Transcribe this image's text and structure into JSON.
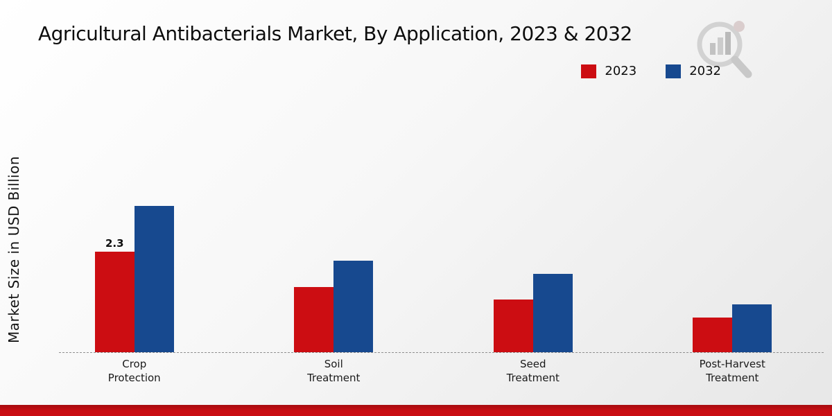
{
  "title": "Agricultural Antibacterials Market, By Application, 2023 & 2032",
  "y_axis_label": "Market Size in USD Billion",
  "legend": [
    {
      "label": "2023",
      "color": "#cc0d12"
    },
    {
      "label": "2032",
      "color": "#17498f"
    }
  ],
  "chart_data": {
    "type": "bar",
    "title": "Agricultural Antibacterials Market, By Application, 2023 & 2032",
    "ylabel": "Market Size in USD Billion",
    "xlabel": "",
    "categories": [
      "Crop Protection",
      "Soil Treatment",
      "Seed Treatment",
      "Post-Harvest Treatment"
    ],
    "category_labels": [
      "Crop\nProtection",
      "Soil\nTreatment",
      "Seed\nTreatment",
      "Post-Harvest\nTreatment"
    ],
    "series": [
      {
        "name": "2023",
        "color": "#cc0d12",
        "values": [
          2.3,
          1.5,
          1.2,
          0.8
        ],
        "value_labels": [
          "2.3",
          "",
          "",
          ""
        ]
      },
      {
        "name": "2032",
        "color": "#17498f",
        "values": [
          3.35,
          2.1,
          1.8,
          1.1
        ],
        "value_labels": [
          "",
          "",
          "",
          ""
        ]
      }
    ],
    "ylim": [
      0,
      4
    ],
    "grid": false,
    "baseline_style": "dashed",
    "legend_position": "top-right"
  },
  "footer": {
    "accent_color": "#c90d12"
  }
}
